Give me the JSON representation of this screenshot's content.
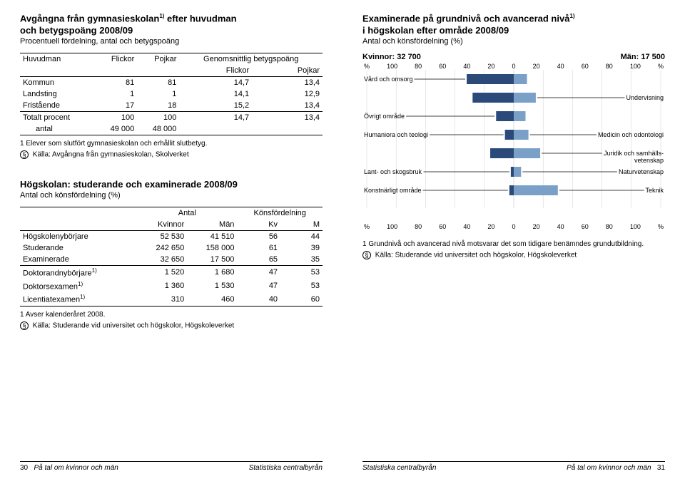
{
  "left": {
    "section1": {
      "title_l1": "Avgångna från gymnasieskolan",
      "title_sup": "1)",
      "title_l1b": " efter huvudman",
      "title_l2": "och betygspoäng 2008/09",
      "subtitle": "Procentuell fördelning, antal och betygspoäng",
      "headers": {
        "c1": "Huvudman",
        "c2": "Flickor",
        "c3": "Pojkar",
        "c4": "Genomsnittlig betygspoäng",
        "c4a": "Flickor",
        "c4b": "Pojkar"
      },
      "rows": [
        {
          "name": "Kommun",
          "f": "81",
          "p": "81",
          "bf": "14,7",
          "bp": "13,4"
        },
        {
          "name": "Landsting",
          "f": "1",
          "p": "1",
          "bf": "14,1",
          "bp": "12,9"
        },
        {
          "name": "Fristående",
          "f": "17",
          "p": "18",
          "bf": "15,2",
          "bp": "13,4"
        }
      ],
      "totals": {
        "label1": "Totalt  procent",
        "f": "100",
        "p": "100",
        "bf": "14,7",
        "bp": "13,4",
        "label2": "antal",
        "af": "49 000",
        "ap": "48 000"
      },
      "footnote": "1   Elever som slutfört gymnasieskolan och erhållit slutbetyg.",
      "source": "Källa: Avgångna från gymnasieskolan, Skolverket"
    },
    "section2": {
      "title": "Högskolan: studerande och examinerade 2008/09",
      "subtitle": "Antal och könsfördelning (%)",
      "headers": {
        "g1": "Antal",
        "g2": "Könsfördelning",
        "c1": "Kvinnor",
        "c2": "Män",
        "c3": "Kv",
        "c4": "M"
      },
      "rows1": [
        {
          "name": "Högskolenybörjare",
          "kv": "52 530",
          "m": "41 510",
          "kvp": "56",
          "mp": "44"
        },
        {
          "name": "Studerande",
          "kv": "242 650",
          "m": "158 000",
          "kvp": "61",
          "mp": "39"
        },
        {
          "name": "Examinerade",
          "kv": "32 650",
          "m": "17 500",
          "kvp": "65",
          "mp": "35"
        }
      ],
      "rows2": [
        {
          "name": "Doktorandnybörjare",
          "sup": "1)",
          "kv": "1 520",
          "m": "1 680",
          "kvp": "47",
          "mp": "53"
        },
        {
          "name": "Doktorsexamen",
          "sup": "1)",
          "kv": "1 360",
          "m": "1 530",
          "kvp": "47",
          "mp": "53"
        },
        {
          "name": "Licentiatexamen",
          "sup": "1)",
          "kv": "310",
          "m": "460",
          "kvp": "40",
          "mp": "60"
        }
      ],
      "footnote": "1   Avser kalenderåret 2008.",
      "source": "Källa: Studerande vid universitet och högskolor, Högskoleverket"
    },
    "footer": {
      "page": "30",
      "doc": "På tal om kvinnor och män",
      "org": "Statistiska centralbyrån"
    }
  },
  "right": {
    "title_l1": "Examinerade på grundnivå och avancerad nivå",
    "title_sup": "1)",
    "title_l2": "i högskolan efter område 2008/09",
    "subtitle": "Antal och könsfördelning (%)",
    "chart": {
      "kvinnor_label": "Kvinnor: 32 700",
      "man_label": "Män: 17 500",
      "axis": [
        "%",
        "100",
        "80",
        "60",
        "40",
        "20",
        "0",
        "20",
        "40",
        "60",
        "80",
        "100",
        "%"
      ],
      "colors": {
        "left_bar": "#2b4a7a",
        "right_bar": "#7aa0c8"
      },
      "categories": [
        {
          "label_l": "Vård och omsorg",
          "label_r": "",
          "lv": 32,
          "rv": 9
        },
        {
          "label_l": "",
          "label_r": "Undervisning",
          "lv": 28,
          "rv": 15
        },
        {
          "label_l": "Övrigt område",
          "label_r": "",
          "lv": 12,
          "rv": 8
        },
        {
          "label_l": "Humaniora och teologi",
          "label_r": "Medicin och odontologi",
          "lv": 6,
          "rv": 10
        },
        {
          "label_l": "",
          "label_r": "Juridik och samhälls-\nvetenskap",
          "lv": 16,
          "rv": 18
        },
        {
          "label_l": "Lant- och skogsbruk",
          "label_r": "Naturvetenskap",
          "lv": 2,
          "rv": 5
        },
        {
          "label_l": "Konstnärligt område",
          "label_r": "Teknik",
          "lv": 3,
          "rv": 30
        }
      ]
    },
    "footnote": "1   Grundnivå och avancerad nivå motsvarar det som tidigare benämndes grundutbildning.",
    "source": "Källa: Studerande vid universitet och högskolor, Högskoleverket",
    "footer": {
      "org": "Statistiska centralbyrån",
      "doc": "På tal om kvinnor och män",
      "page": "31"
    }
  }
}
